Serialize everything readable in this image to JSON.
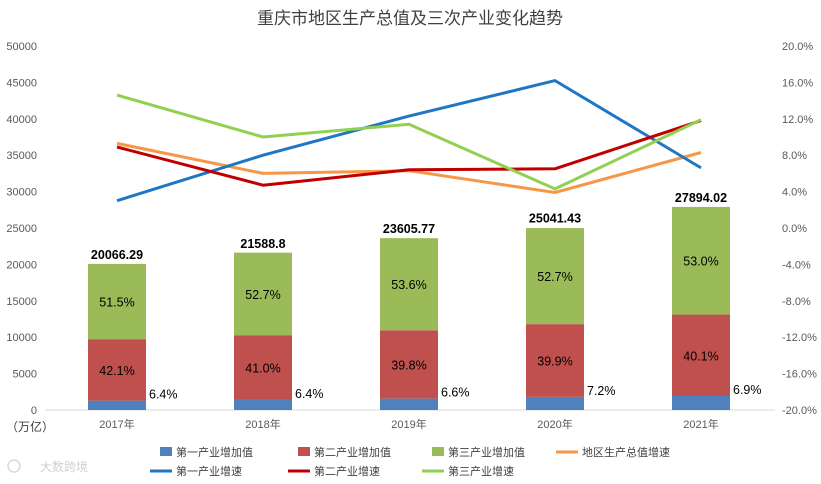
{
  "chart_data": {
    "type": "bar",
    "title": "重庆市地区生产总值及三次产业变化趋势",
    "categories": [
      "2017年",
      "2018年",
      "2019年",
      "2020年",
      "2021年"
    ],
    "y_left": {
      "ticks": [
        "0",
        "5000",
        "10000",
        "15000",
        "20000",
        "25000",
        "30000",
        "35000",
        "40000",
        "45000",
        "50000"
      ],
      "ylim": [
        0,
        50000
      ],
      "unit_label": "（万亿）"
    },
    "y_right": {
      "ticks": [
        "20.0%",
        "16.0%",
        "12.0%",
        "8.0%",
        "4.0%",
        "0.0%",
        "-4.0%",
        "-8.0%",
        "-12.0%",
        "-16.0%",
        "-20.0%"
      ],
      "ylim": [
        -20.0,
        20.0
      ]
    },
    "bars": {
      "totals": [
        "20066.29",
        "21588.8",
        "23605.77",
        "25041.43",
        "27894.02"
      ],
      "total_values": [
        20066.29,
        21588.8,
        23605.77,
        25041.43,
        27894.02
      ],
      "series": [
        {
          "name": "第一产业增加值",
          "color": "#4f81bd",
          "share_labels": [
            "6.4%",
            "6.4%",
            "6.6%",
            "7.2%",
            "6.9%"
          ],
          "share": [
            6.4,
            6.4,
            6.6,
            7.2,
            6.9
          ]
        },
        {
          "name": "第二产业增加值",
          "color": "#c0504d",
          "share_labels": [
            "42.1%",
            "41.0%",
            "39.8%",
            "39.9%",
            "40.1%"
          ],
          "share": [
            42.1,
            41.0,
            39.8,
            39.9,
            40.1
          ]
        },
        {
          "name": "第三产业增加值",
          "color": "#9bbb59",
          "share_labels": [
            "51.5%",
            "52.7%",
            "53.6%",
            "52.7%",
            "53.0%"
          ],
          "share": [
            51.5,
            52.7,
            53.6,
            52.7,
            53.0
          ]
        }
      ]
    },
    "lines": [
      {
        "name": "地区生产总值增速",
        "color": "#f79646",
        "values": [
          9.3,
          6.0,
          6.3,
          3.9,
          8.3
        ]
      },
      {
        "name": "第一产业增速",
        "color": "#1f77c4",
        "values": [
          3.0,
          8.0,
          12.3,
          16.2,
          6.6
        ]
      },
      {
        "name": "第二产业增速",
        "color": "#c00000",
        "values": [
          8.9,
          4.7,
          6.4,
          6.5,
          11.8
        ]
      },
      {
        "name": "第三产业增速",
        "color": "#92d050",
        "values": [
          14.6,
          10.0,
          11.4,
          4.3,
          11.9
        ]
      }
    ],
    "legend": {
      "placement": "bottom",
      "items": [
        "第一产业增加值",
        "第二产业增加值",
        "第三产业增加值",
        "地区生产总值增速",
        "第一产业增速",
        "第二产业增速",
        "第三产业增速"
      ]
    },
    "grid": false
  },
  "watermark": "大数跨境"
}
